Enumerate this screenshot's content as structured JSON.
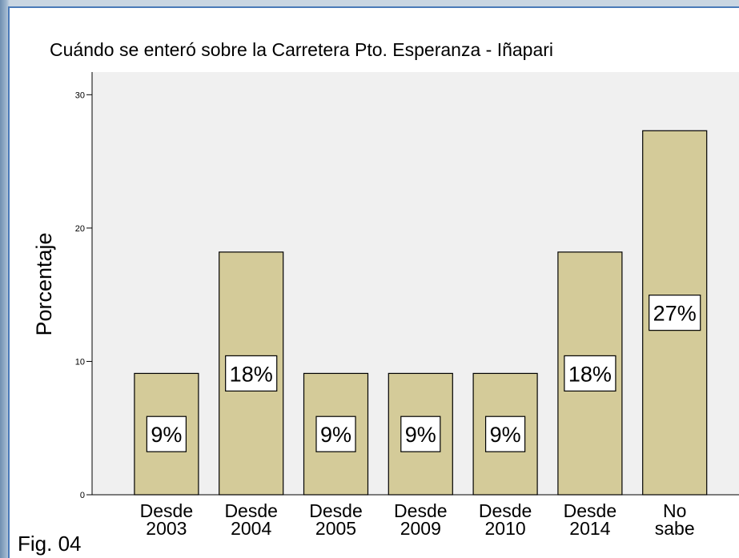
{
  "chart_data": {
    "type": "bar",
    "title": "Cuándo se enteró sobre la Carretera Pto. Esperanza - Iñapari",
    "y_label": "Porcentaje",
    "categories": [
      "Desde 2003",
      "Desde 2004",
      "Desde 2005",
      "Desde 2009",
      "Desde 2010",
      "Desde 2014",
      "No sabe"
    ],
    "values": [
      9.1,
      18.2,
      9.1,
      9.1,
      9.1,
      18.2,
      27.3
    ],
    "value_labels": [
      "9%",
      "18%",
      "9%",
      "9%",
      "9%",
      "18%",
      "27%"
    ],
    "color": "#d4cb99",
    "ylim": [
      0,
      31.7
    ],
    "yticks": [
      0,
      10,
      20,
      30
    ],
    "annotation": "Fig. 04"
  }
}
